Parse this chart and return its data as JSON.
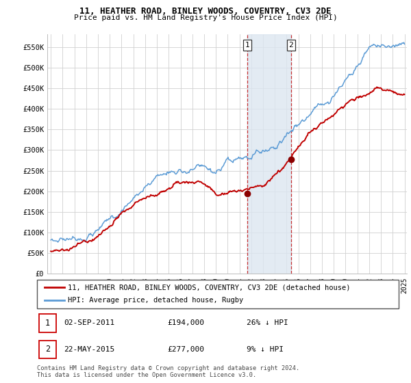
{
  "title": "11, HEATHER ROAD, BINLEY WOODS, COVENTRY, CV3 2DE",
  "subtitle": "Price paid vs. HM Land Registry's House Price Index (HPI)",
  "ylabel_ticks": [
    "£0",
    "£50K",
    "£100K",
    "£150K",
    "£200K",
    "£250K",
    "£300K",
    "£350K",
    "£400K",
    "£450K",
    "£500K",
    "£550K"
  ],
  "ytick_values": [
    0,
    50000,
    100000,
    150000,
    200000,
    250000,
    300000,
    350000,
    400000,
    450000,
    500000,
    550000
  ],
  "ylim": [
    0,
    580000
  ],
  "sale1_date": "02-SEP-2011",
  "sale1_price": 194000,
  "sale1_pct": "26% ↓ HPI",
  "sale1_x": 2011.67,
  "sale2_date": "22-MAY-2015",
  "sale2_price": 277000,
  "sale2_pct": "9% ↓ HPI",
  "sale2_x": 2015.38,
  "legend_label1": "11, HEATHER ROAD, BINLEY WOODS, COVENTRY, CV3 2DE (detached house)",
  "legend_label2": "HPI: Average price, detached house, Rugby",
  "footnote": "Contains HM Land Registry data © Crown copyright and database right 2024.\nThis data is licensed under the Open Government Licence v3.0.",
  "hpi_color": "#5b9bd5",
  "price_color": "#c00000",
  "marker_color": "#8b0000",
  "shade_color": "#dce6f1",
  "vline_color": "#c00000",
  "grid_color": "#d0d0d0",
  "bg_color": "#ffffff",
  "xlim_start": 1995.0,
  "xlim_end": 2025.2
}
